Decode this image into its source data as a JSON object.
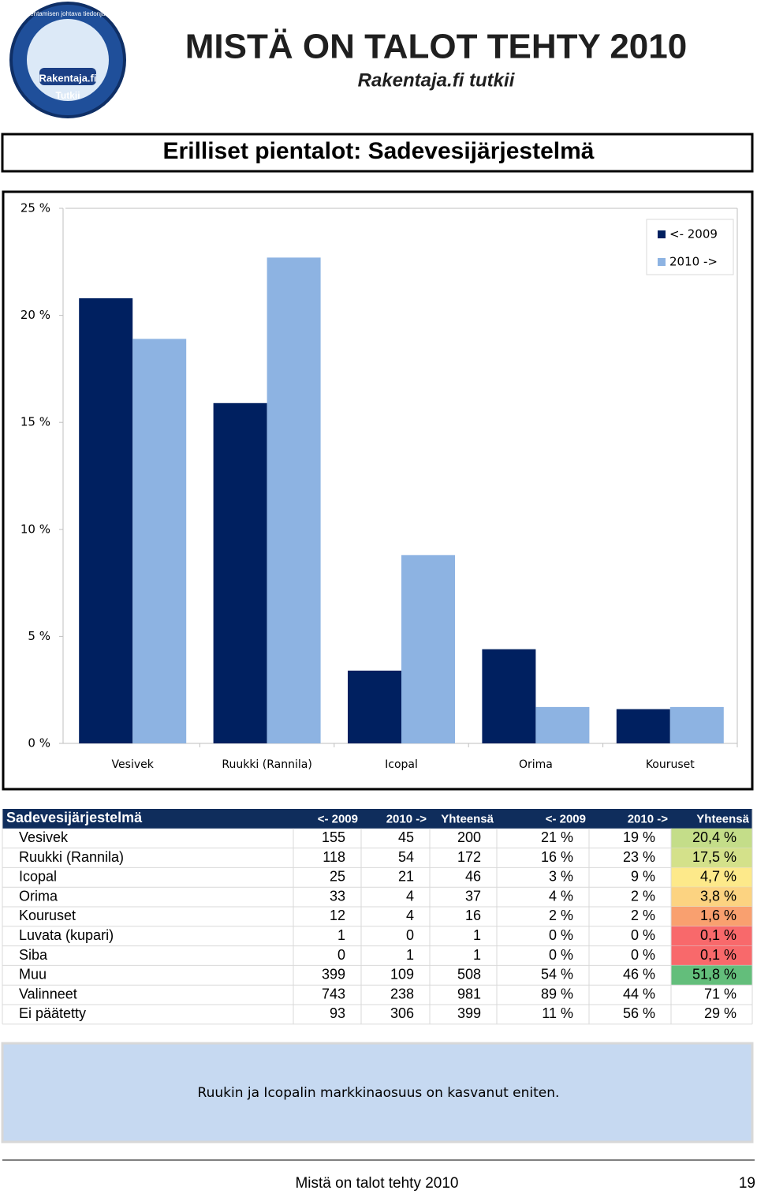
{
  "header": {
    "title": "MISTÄ ON TALOT TEHTY 2010",
    "subtitle": "Rakentaja.fi tutkii",
    "logo_ring": "Rakentamisen johtava tiedonjakaja",
    "logo_name": "Rakentaja.fi",
    "logo_tag": "Tutkii"
  },
  "section_title": "Erilliset pientalot: Sadevesijärjestelmä",
  "chart_data": {
    "type": "bar",
    "categories": [
      "Vesivek",
      "Ruukki (Rannila)",
      "Icopal",
      "Orima",
      "Kouruset"
    ],
    "series": [
      {
        "name": "<- 2009",
        "color": "#002060",
        "values": [
          20.8,
          15.9,
          3.4,
          4.4,
          1.6
        ]
      },
      {
        "name": "2010 ->",
        "color": "#8db3e2",
        "values": [
          18.9,
          22.7,
          8.8,
          1.7,
          1.7
        ]
      }
    ],
    "ylim": [
      0,
      25
    ],
    "yticks": [
      {
        "value": 0,
        "label": "0 %"
      },
      {
        "value": 5,
        "label": "5 %"
      },
      {
        "value": 10,
        "label": "10 %"
      },
      {
        "value": 15,
        "label": "15 %"
      },
      {
        "value": 20,
        "label": "20 %"
      },
      {
        "value": 25,
        "label": "25 %"
      }
    ],
    "grid": false,
    "legend": "top-right"
  },
  "table": {
    "header": [
      "Sadevesijärjestelmä",
      "<- 2009",
      "2010 ->",
      "Yhteensä",
      "<- 2009",
      "2010 ->",
      "Yhteensä"
    ],
    "rows": [
      [
        "Vesivek",
        "155",
        "45",
        "200",
        "21 %",
        "19 %",
        "20,4 %"
      ],
      [
        "Ruukki (Rannila)",
        "118",
        "54",
        "172",
        "16 %",
        "23 %",
        "17,5 %"
      ],
      [
        "Icopal",
        "25",
        "21",
        "46",
        "3 %",
        "9 %",
        "4,7 %"
      ],
      [
        "Orima",
        "33",
        "4",
        "37",
        "4 %",
        "2 %",
        "3,8 %"
      ],
      [
        "Kouruset",
        "12",
        "4",
        "16",
        "2 %",
        "2 %",
        "1,6 %"
      ],
      [
        "Luvata (kupari)",
        "1",
        "0",
        "1",
        "0 %",
        "0 %",
        "0,1 %"
      ],
      [
        "Siba",
        "0",
        "1",
        "1",
        "0 %",
        "0 %",
        "0,1 %"
      ],
      [
        "Muu",
        "399",
        "109",
        "508",
        "54 %",
        "46 %",
        "51,8 %"
      ],
      [
        "Valinneet",
        "743",
        "238",
        "981",
        "89 %",
        "44 %",
        "71 %"
      ],
      [
        "Ei päätetty",
        "93",
        "306",
        "399",
        "11 %",
        "56 %",
        "29 %"
      ]
    ],
    "total_colors": [
      "#c4dd89",
      "#d4e18a",
      "#fde98a",
      "#fcd381",
      "#f9a06f",
      "#f8696b",
      "#f8696b",
      "#63be7b",
      null,
      null
    ]
  },
  "note": "Ruukin ja Icopalin markkinaosuus on kasvanut eniten.",
  "footer": {
    "text": "Mistä on talot tehty 2010",
    "page": "19"
  }
}
